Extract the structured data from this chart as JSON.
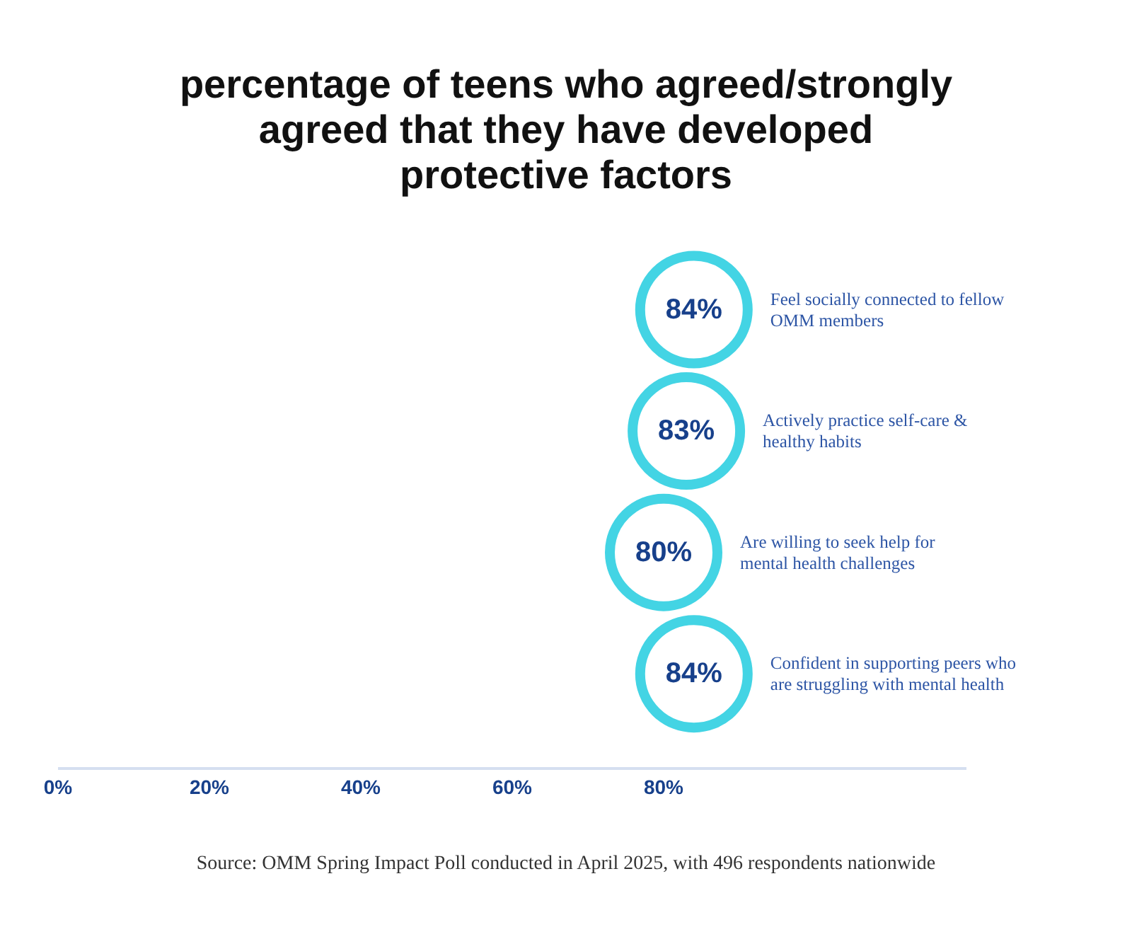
{
  "chart_data": {
    "type": "scatter",
    "orientation": "horizontal",
    "title": "percentage of teens who agreed/strongly agreed that they have developed protective factors",
    "categories": [
      "Feel socially connected to fellow OMM members",
      "Actively practice self-care & healthy habits",
      "Are willing to seek help for mental health challenges",
      "Confident in supporting peers who are struggling with mental health"
    ],
    "values": [
      84,
      83,
      80,
      84
    ],
    "value_labels": [
      "84%",
      "83%",
      "80%",
      "84%"
    ],
    "color": "#43d4e4",
    "marker": "circle",
    "xlim": [
      0,
      120
    ],
    "xticks": [
      {
        "value": 0,
        "label": "0%"
      },
      {
        "value": 20,
        "label": "20%"
      },
      {
        "value": 40,
        "label": "40%"
      },
      {
        "value": 60,
        "label": "60%"
      },
      {
        "value": 80,
        "label": "80%"
      }
    ],
    "tick_labels": "x",
    "annotations": [
      "Source: OMM Spring Impact Poll conducted in April 2025, with 496 respondents nationwide"
    ]
  }
}
